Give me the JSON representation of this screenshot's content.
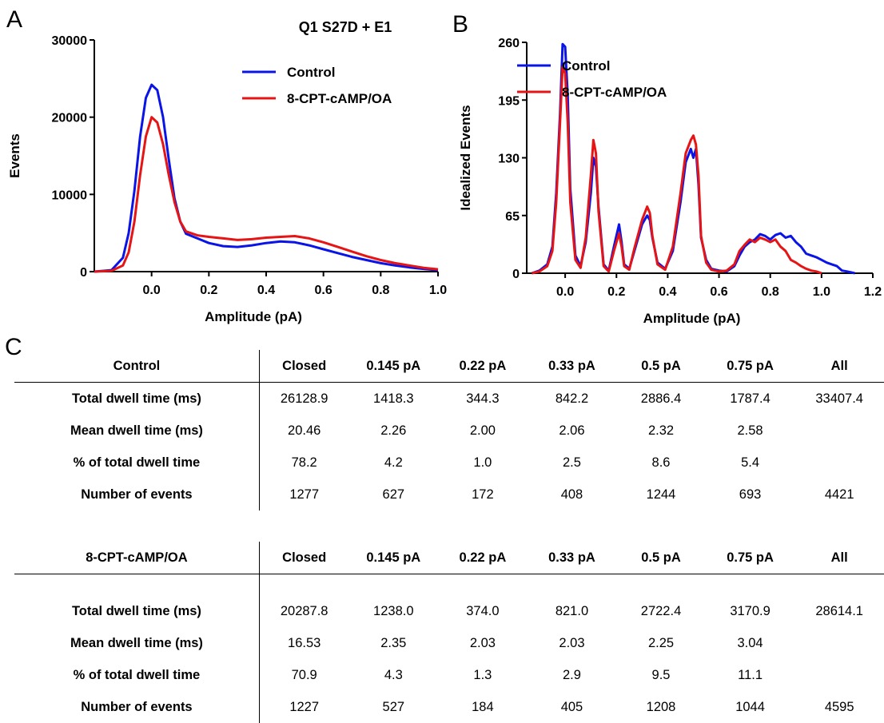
{
  "panels": {
    "a": "A",
    "b": "B",
    "c": "C"
  },
  "colors": {
    "control": "#0a14e6",
    "treated": "#e61414"
  },
  "chart_data": [
    {
      "type": "line",
      "panel": "A",
      "title": "Q1 S27D + E1",
      "xlabel": "Amplitude (pA)",
      "ylabel": "Events",
      "xlim": [
        -0.2,
        1.0
      ],
      "ylim": [
        0,
        30000
      ],
      "xticks": [
        0.0,
        0.2,
        0.4,
        0.6,
        0.8,
        1.0
      ],
      "xtick_labels": [
        "0.0",
        "0.2",
        "0.4",
        "0.6",
        "0.8",
        "1.0"
      ],
      "yticks": [
        0,
        10000,
        20000,
        30000
      ],
      "ytick_labels": [
        "0",
        "10000",
        "20000",
        "30000"
      ],
      "legend_position": "top-right",
      "series": [
        {
          "name": "Control",
          "color": "#0a14e6",
          "x": [
            -0.2,
            -0.14,
            -0.1,
            -0.08,
            -0.06,
            -0.04,
            -0.02,
            0.0,
            0.02,
            0.04,
            0.06,
            0.08,
            0.1,
            0.12,
            0.16,
            0.2,
            0.25,
            0.3,
            0.35,
            0.4,
            0.45,
            0.5,
            0.55,
            0.6,
            0.65,
            0.7,
            0.75,
            0.8,
            0.85,
            0.9,
            0.95,
            1.0
          ],
          "y": [
            0,
            200,
            1800,
            5000,
            10500,
            17500,
            22500,
            24200,
            23500,
            20000,
            14500,
            9500,
            6500,
            4900,
            4300,
            3700,
            3300,
            3200,
            3400,
            3700,
            3900,
            3800,
            3400,
            2900,
            2400,
            1900,
            1500,
            1100,
            800,
            550,
            350,
            200
          ]
        },
        {
          "name": "8-CPT-cAMP/OA",
          "color": "#e61414",
          "x": [
            -0.2,
            -0.14,
            -0.1,
            -0.08,
            -0.06,
            -0.04,
            -0.02,
            0.0,
            0.02,
            0.04,
            0.06,
            0.08,
            0.1,
            0.12,
            0.16,
            0.2,
            0.25,
            0.3,
            0.35,
            0.4,
            0.45,
            0.5,
            0.55,
            0.6,
            0.65,
            0.7,
            0.75,
            0.8,
            0.85,
            0.9,
            0.95,
            1.0
          ],
          "y": [
            0,
            100,
            800,
            2500,
            6500,
            12500,
            17500,
            20000,
            19300,
            16500,
            12500,
            9000,
            6500,
            5200,
            4700,
            4500,
            4300,
            4100,
            4200,
            4400,
            4500,
            4600,
            4300,
            3800,
            3200,
            2600,
            2000,
            1500,
            1100,
            800,
            500,
            300
          ]
        }
      ]
    },
    {
      "type": "line",
      "panel": "B",
      "xlabel": "Amplitude (pA)",
      "ylabel": "Idealized Events",
      "xlim": [
        -0.15,
        1.2
      ],
      "ylim": [
        0,
        260
      ],
      "xticks": [
        0.0,
        0.2,
        0.4,
        0.6,
        0.8,
        1.0,
        1.2
      ],
      "xtick_labels": [
        "0.0",
        "0.2",
        "0.4",
        "0.6",
        "0.8",
        "1.0",
        "1.2"
      ],
      "yticks": [
        0,
        65,
        130,
        195,
        260
      ],
      "ytick_labels": [
        "0",
        "65",
        "130",
        "195",
        "260"
      ],
      "legend_position": "top-right",
      "series": [
        {
          "name": "Control",
          "color": "#0a14e6",
          "x": [
            -0.13,
            -0.1,
            -0.07,
            -0.05,
            -0.035,
            -0.02,
            -0.01,
            0.0,
            0.01,
            0.02,
            0.04,
            0.06,
            0.08,
            0.1,
            0.11,
            0.12,
            0.13,
            0.15,
            0.17,
            0.19,
            0.21,
            0.22,
            0.23,
            0.25,
            0.27,
            0.3,
            0.32,
            0.33,
            0.34,
            0.36,
            0.39,
            0.42,
            0.45,
            0.47,
            0.49,
            0.5,
            0.51,
            0.52,
            0.53,
            0.55,
            0.57,
            0.6,
            0.63,
            0.66,
            0.68,
            0.7,
            0.72,
            0.74,
            0.76,
            0.78,
            0.8,
            0.82,
            0.84,
            0.86,
            0.88,
            0.9,
            0.92,
            0.94,
            0.96,
            0.98,
            1.0,
            1.02,
            1.04,
            1.06,
            1.08,
            1.1,
            1.13
          ],
          "y": [
            0,
            3,
            10,
            30,
            90,
            180,
            258,
            255,
            200,
            95,
            20,
            8,
            35,
            90,
            130,
            120,
            75,
            10,
            3,
            30,
            55,
            35,
            10,
            5,
            25,
            55,
            65,
            60,
            40,
            12,
            5,
            25,
            80,
            125,
            140,
            130,
            140,
            100,
            40,
            15,
            5,
            3,
            2,
            8,
            20,
            30,
            35,
            38,
            44,
            42,
            38,
            43,
            45,
            40,
            42,
            35,
            30,
            22,
            20,
            18,
            15,
            12,
            10,
            8,
            3,
            2,
            0
          ]
        },
        {
          "name": "8-CPT-cAMP/OA",
          "color": "#e61414",
          "x": [
            -0.13,
            -0.1,
            -0.07,
            -0.05,
            -0.035,
            -0.02,
            -0.01,
            0.0,
            0.01,
            0.02,
            0.04,
            0.06,
            0.08,
            0.1,
            0.11,
            0.12,
            0.13,
            0.15,
            0.17,
            0.19,
            0.21,
            0.22,
            0.23,
            0.25,
            0.27,
            0.3,
            0.32,
            0.33,
            0.34,
            0.36,
            0.39,
            0.42,
            0.45,
            0.47,
            0.49,
            0.5,
            0.51,
            0.52,
            0.53,
            0.55,
            0.57,
            0.6,
            0.63,
            0.66,
            0.68,
            0.7,
            0.72,
            0.74,
            0.76,
            0.78,
            0.8,
            0.82,
            0.84,
            0.86,
            0.88,
            0.9,
            0.92,
            0.94,
            0.96,
            0.98,
            1.0
          ],
          "y": [
            0,
            2,
            8,
            25,
            80,
            170,
            232,
            225,
            170,
            80,
            15,
            6,
            40,
            110,
            150,
            135,
            70,
            8,
            2,
            25,
            45,
            30,
            8,
            4,
            28,
            60,
            75,
            68,
            42,
            10,
            4,
            30,
            90,
            135,
            150,
            155,
            145,
            110,
            42,
            12,
            4,
            2,
            3,
            10,
            25,
            32,
            38,
            35,
            40,
            38,
            35,
            38,
            30,
            25,
            15,
            12,
            8,
            5,
            3,
            2,
            0
          ]
        }
      ]
    },
    {
      "type": "table",
      "panel": "C",
      "tables": [
        {
          "header": [
            "Control",
            "Closed",
            "0.145 pA",
            "0.22 pA",
            "0.33 pA",
            "0.5 pA",
            "0.75 pA",
            "All"
          ],
          "rows": [
            [
              "Total dwell time (ms)",
              "26128.9",
              "1418.3",
              "344.3",
              "842.2",
              "2886.4",
              "1787.4",
              "33407.4"
            ],
            [
              "Mean dwell time (ms)",
              "20.46",
              "2.26",
              "2.00",
              "2.06",
              "2.32",
              "2.58",
              ""
            ],
            [
              "% of total dwell time",
              "78.2",
              "4.2",
              "1.0",
              "2.5",
              "8.6",
              "5.4",
              ""
            ],
            [
              "Number of events",
              "1277",
              "627",
              "172",
              "408",
              "1244",
              "693",
              "4421"
            ]
          ]
        },
        {
          "header": [
            "8-CPT-cAMP/OA",
            "Closed",
            "0.145 pA",
            "0.22 pA",
            "0.33 pA",
            "0.5 pA",
            "0.75 pA",
            "All"
          ],
          "rows": [
            [
              "Total dwell time (ms)",
              "20287.8",
              "1238.0",
              "374.0",
              "821.0",
              "2722.4",
              "3170.9",
              "28614.1"
            ],
            [
              "Mean dwell time (ms)",
              "16.53",
              "2.35",
              "2.03",
              "2.03",
              "2.25",
              "3.04",
              ""
            ],
            [
              "% of total dwell time",
              "70.9",
              "4.3",
              "1.3",
              "2.9",
              "9.5",
              "11.1",
              ""
            ],
            [
              "Number of events",
              "1227",
              "527",
              "184",
              "405",
              "1208",
              "1044",
              "4595"
            ]
          ]
        }
      ]
    }
  ]
}
